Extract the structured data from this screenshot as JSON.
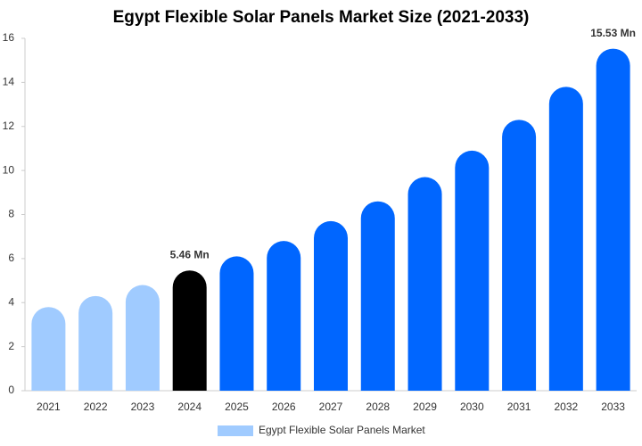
{
  "chart_data": {
    "type": "bar",
    "title": "Egypt Flexible Solar Panels Market Size (2021-2033)",
    "categories": [
      "2021",
      "2022",
      "2023",
      "2024",
      "2025",
      "2026",
      "2027",
      "2028",
      "2029",
      "2030",
      "2031",
      "2032",
      "2033"
    ],
    "series": [
      {
        "name": "Egypt Flexible Solar Panels Market",
        "color": "#a0cbff",
        "colors": [
          "#a0cbff",
          "#a0cbff",
          "#a0cbff",
          "#000000",
          "#0066ff",
          "#0066ff",
          "#0066ff",
          "#0066ff",
          "#0066ff",
          "#0066ff",
          "#0066ff",
          "#0066ff",
          "#0066ff"
        ],
        "values": [
          3.8,
          4.3,
          4.8,
          5.46,
          6.1,
          6.8,
          7.7,
          8.6,
          9.7,
          10.9,
          12.3,
          13.8,
          15.53
        ],
        "value_labels": [
          null,
          null,
          null,
          "5.46 Mn",
          null,
          null,
          null,
          null,
          null,
          null,
          null,
          null,
          "15.53 Mn"
        ]
      }
    ],
    "ylim": [
      0,
      16
    ],
    "yticks": [
      0,
      2,
      4,
      6,
      8,
      10,
      12,
      14,
      16
    ],
    "grid": false
  }
}
